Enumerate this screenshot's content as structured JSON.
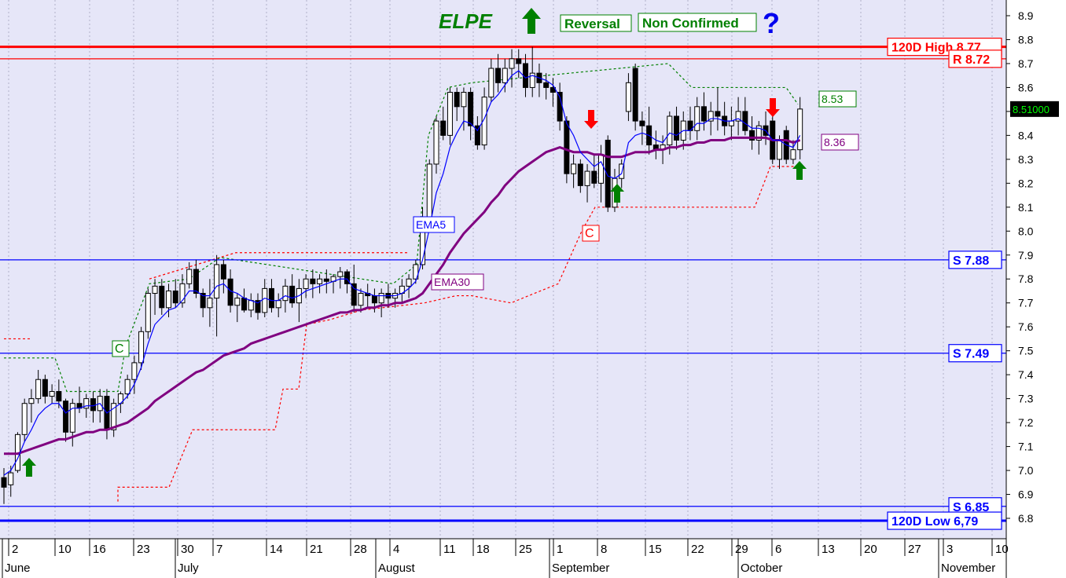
{
  "header": {
    "ticker": "ELPE",
    "tag_reversal": "Reversal",
    "tag_non_confirmed": "Non Confirmed",
    "question_mark": "?",
    "up_arrow_icon": "up-arrow-icon"
  },
  "chart_data": {
    "type": "candlestick",
    "title": "ELPE",
    "y_range": [
      6.76,
      8.96
    ],
    "y_ticks": [
      "6.8",
      "6.9",
      "7.0",
      "7.1",
      "7.2",
      "7.3",
      "7.4",
      "7.5",
      "7.6",
      "7.7",
      "7.8",
      "7.9",
      "8.0",
      "8.1",
      "8.2",
      "8.3",
      "8.4",
      "8.5",
      "8.6",
      "8.7",
      "8.8",
      "8.9"
    ],
    "x_tick_labels": [
      "2",
      "10",
      "16",
      "23",
      "30",
      "7",
      "14",
      "21",
      "28",
      "4",
      "11",
      "18",
      "25",
      "1",
      "8",
      "15",
      "22",
      "29",
      "6",
      "13",
      "20",
      "27",
      "3",
      "10"
    ],
    "month_labels": [
      "June",
      "July",
      "August",
      "September",
      "October",
      "November"
    ],
    "last_price": "8.51000",
    "candles": [
      {
        "o": 6.97,
        "h": 7.01,
        "l": 6.86,
        "c": 6.93
      },
      {
        "o": 6.94,
        "h": 7.02,
        "l": 6.89,
        "c": 6.99
      },
      {
        "o": 7.0,
        "h": 7.16,
        "l": 6.99,
        "c": 7.15
      },
      {
        "o": 7.15,
        "h": 7.3,
        "l": 7.12,
        "c": 7.28
      },
      {
        "o": 7.28,
        "h": 7.34,
        "l": 7.2,
        "c": 7.3
      },
      {
        "o": 7.3,
        "h": 7.42,
        "l": 7.28,
        "c": 7.38
      },
      {
        "o": 7.38,
        "h": 7.4,
        "l": 7.28,
        "c": 7.31
      },
      {
        "o": 7.31,
        "h": 7.36,
        "l": 7.28,
        "c": 7.33
      },
      {
        "o": 7.33,
        "h": 7.38,
        "l": 7.26,
        "c": 7.29
      },
      {
        "o": 7.29,
        "h": 7.3,
        "l": 7.12,
        "c": 7.16
      },
      {
        "o": 7.16,
        "h": 7.3,
        "l": 7.1,
        "c": 7.28
      },
      {
        "o": 7.28,
        "h": 7.35,
        "l": 7.24,
        "c": 7.26
      },
      {
        "o": 7.26,
        "h": 7.32,
        "l": 7.22,
        "c": 7.3
      },
      {
        "o": 7.3,
        "h": 7.33,
        "l": 7.2,
        "c": 7.25
      },
      {
        "o": 7.25,
        "h": 7.34,
        "l": 7.2,
        "c": 7.31
      },
      {
        "o": 7.31,
        "h": 7.34,
        "l": 7.13,
        "c": 7.17
      },
      {
        "o": 7.17,
        "h": 7.3,
        "l": 7.14,
        "c": 7.28
      },
      {
        "o": 7.28,
        "h": 7.33,
        "l": 7.24,
        "c": 7.32
      },
      {
        "o": 7.32,
        "h": 7.4,
        "l": 7.3,
        "c": 7.38
      },
      {
        "o": 7.38,
        "h": 7.48,
        "l": 7.32,
        "c": 7.45
      },
      {
        "o": 7.45,
        "h": 7.6,
        "l": 7.42,
        "c": 7.58
      },
      {
        "o": 7.58,
        "h": 7.76,
        "l": 7.55,
        "c": 7.74
      },
      {
        "o": 7.74,
        "h": 7.8,
        "l": 7.65,
        "c": 7.77
      },
      {
        "o": 7.77,
        "h": 7.8,
        "l": 7.65,
        "c": 7.68
      },
      {
        "o": 7.68,
        "h": 7.78,
        "l": 7.64,
        "c": 7.75
      },
      {
        "o": 7.75,
        "h": 7.8,
        "l": 7.68,
        "c": 7.7
      },
      {
        "o": 7.7,
        "h": 7.82,
        "l": 7.68,
        "c": 7.78
      },
      {
        "o": 7.78,
        "h": 7.87,
        "l": 7.76,
        "c": 7.84
      },
      {
        "o": 7.84,
        "h": 7.88,
        "l": 7.72,
        "c": 7.74
      },
      {
        "o": 7.74,
        "h": 7.76,
        "l": 7.64,
        "c": 7.68
      },
      {
        "o": 7.68,
        "h": 7.8,
        "l": 7.6,
        "c": 7.72
      },
      {
        "o": 7.72,
        "h": 7.9,
        "l": 7.56,
        "c": 7.86
      },
      {
        "o": 7.86,
        "h": 7.88,
        "l": 7.74,
        "c": 7.8
      },
      {
        "o": 7.8,
        "h": 7.84,
        "l": 7.66,
        "c": 7.69
      },
      {
        "o": 7.69,
        "h": 7.74,
        "l": 7.62,
        "c": 7.72
      },
      {
        "o": 7.72,
        "h": 7.76,
        "l": 7.66,
        "c": 7.67
      },
      {
        "o": 7.67,
        "h": 7.74,
        "l": 7.64,
        "c": 7.71
      },
      {
        "o": 7.71,
        "h": 7.74,
        "l": 7.63,
        "c": 7.66
      },
      {
        "o": 7.66,
        "h": 7.8,
        "l": 7.64,
        "c": 7.76
      },
      {
        "o": 7.76,
        "h": 7.8,
        "l": 7.66,
        "c": 7.68
      },
      {
        "o": 7.68,
        "h": 7.74,
        "l": 7.64,
        "c": 7.71
      },
      {
        "o": 7.71,
        "h": 7.8,
        "l": 7.66,
        "c": 7.77
      },
      {
        "o": 7.77,
        "h": 7.82,
        "l": 7.68,
        "c": 7.7
      },
      {
        "o": 7.7,
        "h": 7.8,
        "l": 7.62,
        "c": 7.76
      },
      {
        "o": 7.76,
        "h": 7.82,
        "l": 7.72,
        "c": 7.8
      },
      {
        "o": 7.8,
        "h": 7.84,
        "l": 7.72,
        "c": 7.78
      },
      {
        "o": 7.78,
        "h": 7.82,
        "l": 7.74,
        "c": 7.8
      },
      {
        "o": 7.8,
        "h": 7.84,
        "l": 7.74,
        "c": 7.79
      },
      {
        "o": 7.79,
        "h": 7.82,
        "l": 7.74,
        "c": 7.81
      },
      {
        "o": 7.81,
        "h": 7.85,
        "l": 7.76,
        "c": 7.83
      },
      {
        "o": 7.83,
        "h": 7.84,
        "l": 7.74,
        "c": 7.78
      },
      {
        "o": 7.78,
        "h": 7.86,
        "l": 7.66,
        "c": 7.69
      },
      {
        "o": 7.69,
        "h": 7.76,
        "l": 7.66,
        "c": 7.74
      },
      {
        "o": 7.74,
        "h": 7.78,
        "l": 7.68,
        "c": 7.73
      },
      {
        "o": 7.73,
        "h": 7.76,
        "l": 7.66,
        "c": 7.7
      },
      {
        "o": 7.7,
        "h": 7.76,
        "l": 7.64,
        "c": 7.74
      },
      {
        "o": 7.74,
        "h": 7.78,
        "l": 7.68,
        "c": 7.72
      },
      {
        "o": 7.72,
        "h": 7.76,
        "l": 7.68,
        "c": 7.74
      },
      {
        "o": 7.74,
        "h": 7.8,
        "l": 7.7,
        "c": 7.77
      },
      {
        "o": 7.77,
        "h": 7.82,
        "l": 7.72,
        "c": 7.8
      },
      {
        "o": 7.8,
        "h": 7.88,
        "l": 7.78,
        "c": 7.86
      },
      {
        "o": 7.86,
        "h": 8.1,
        "l": 7.84,
        "c": 8.06
      },
      {
        "o": 8.06,
        "h": 8.3,
        "l": 8.02,
        "c": 8.28
      },
      {
        "o": 8.28,
        "h": 8.48,
        "l": 8.24,
        "c": 8.46
      },
      {
        "o": 8.46,
        "h": 8.52,
        "l": 8.38,
        "c": 8.4
      },
      {
        "o": 8.4,
        "h": 8.6,
        "l": 8.36,
        "c": 8.58
      },
      {
        "o": 8.58,
        "h": 8.6,
        "l": 8.46,
        "c": 8.52
      },
      {
        "o": 8.52,
        "h": 8.6,
        "l": 8.42,
        "c": 8.58
      },
      {
        "o": 8.58,
        "h": 8.6,
        "l": 8.38,
        "c": 8.44
      },
      {
        "o": 8.44,
        "h": 8.48,
        "l": 8.34,
        "c": 8.36
      },
      {
        "o": 8.36,
        "h": 8.6,
        "l": 8.34,
        "c": 8.56
      },
      {
        "o": 8.56,
        "h": 8.72,
        "l": 8.54,
        "c": 8.68
      },
      {
        "o": 8.68,
        "h": 8.74,
        "l": 8.58,
        "c": 8.62
      },
      {
        "o": 8.62,
        "h": 8.72,
        "l": 8.58,
        "c": 8.68
      },
      {
        "o": 8.68,
        "h": 8.76,
        "l": 8.6,
        "c": 8.72
      },
      {
        "o": 8.72,
        "h": 8.76,
        "l": 8.64,
        "c": 8.7
      },
      {
        "o": 8.7,
        "h": 8.74,
        "l": 8.56,
        "c": 8.6
      },
      {
        "o": 8.6,
        "h": 8.77,
        "l": 8.56,
        "c": 8.66
      },
      {
        "o": 8.66,
        "h": 8.7,
        "l": 8.56,
        "c": 8.62
      },
      {
        "o": 8.62,
        "h": 8.66,
        "l": 8.55,
        "c": 8.6
      },
      {
        "o": 8.6,
        "h": 8.64,
        "l": 8.52,
        "c": 8.58
      },
      {
        "o": 8.58,
        "h": 8.62,
        "l": 8.42,
        "c": 8.46
      },
      {
        "o": 8.46,
        "h": 8.48,
        "l": 8.2,
        "c": 8.24
      },
      {
        "o": 8.24,
        "h": 8.32,
        "l": 8.18,
        "c": 8.28
      },
      {
        "o": 8.28,
        "h": 8.3,
        "l": 8.16,
        "c": 8.19
      },
      {
        "o": 8.19,
        "h": 8.28,
        "l": 8.12,
        "c": 8.25
      },
      {
        "o": 8.25,
        "h": 8.32,
        "l": 8.18,
        "c": 8.2
      },
      {
        "o": 8.2,
        "h": 8.36,
        "l": 8.12,
        "c": 8.32
      },
      {
        "o": 8.38,
        "h": 8.4,
        "l": 8.08,
        "c": 8.1
      },
      {
        "o": 8.1,
        "h": 8.26,
        "l": 8.08,
        "c": 8.22
      },
      {
        "o": 8.22,
        "h": 8.3,
        "l": 8.18,
        "c": 8.28
      },
      {
        "o": 8.5,
        "h": 8.66,
        "l": 8.46,
        "c": 8.62
      },
      {
        "o": 8.68,
        "h": 8.7,
        "l": 8.42,
        "c": 8.46
      },
      {
        "o": 8.46,
        "h": 8.5,
        "l": 8.36,
        "c": 8.44
      },
      {
        "o": 8.44,
        "h": 8.52,
        "l": 8.32,
        "c": 8.36
      },
      {
        "o": 8.36,
        "h": 8.42,
        "l": 8.3,
        "c": 8.34
      },
      {
        "o": 8.34,
        "h": 8.4,
        "l": 8.28,
        "c": 8.36
      },
      {
        "o": 8.36,
        "h": 8.5,
        "l": 8.32,
        "c": 8.48
      },
      {
        "o": 8.48,
        "h": 8.52,
        "l": 8.34,
        "c": 8.38
      },
      {
        "o": 8.38,
        "h": 8.5,
        "l": 8.34,
        "c": 8.46
      },
      {
        "o": 8.46,
        "h": 8.52,
        "l": 8.38,
        "c": 8.42
      },
      {
        "o": 8.42,
        "h": 8.56,
        "l": 8.38,
        "c": 8.52
      },
      {
        "o": 8.52,
        "h": 8.58,
        "l": 8.42,
        "c": 8.46
      },
      {
        "o": 8.46,
        "h": 8.54,
        "l": 8.4,
        "c": 8.5
      },
      {
        "o": 8.5,
        "h": 8.6,
        "l": 8.42,
        "c": 8.48
      },
      {
        "o": 8.48,
        "h": 8.54,
        "l": 8.4,
        "c": 8.44
      },
      {
        "o": 8.44,
        "h": 8.52,
        "l": 8.38,
        "c": 8.46
      },
      {
        "o": 8.46,
        "h": 8.56,
        "l": 8.4,
        "c": 8.5
      },
      {
        "o": 8.5,
        "h": 8.56,
        "l": 8.4,
        "c": 8.42
      },
      {
        "o": 8.42,
        "h": 8.48,
        "l": 8.34,
        "c": 8.38
      },
      {
        "o": 8.38,
        "h": 8.46,
        "l": 8.32,
        "c": 8.44
      },
      {
        "o": 8.44,
        "h": 8.5,
        "l": 8.36,
        "c": 8.4
      },
      {
        "o": 8.46,
        "h": 8.48,
        "l": 8.28,
        "c": 8.3
      },
      {
        "o": 8.3,
        "h": 8.4,
        "l": 8.26,
        "c": 8.38
      },
      {
        "o": 8.42,
        "h": 8.44,
        "l": 8.28,
        "c": 8.3
      },
      {
        "o": 8.3,
        "h": 8.38,
        "l": 8.28,
        "c": 8.34
      },
      {
        "o": 8.34,
        "h": 8.56,
        "l": 8.3,
        "c": 8.51
      }
    ],
    "ema5": [
      6.98,
      7.0,
      7.05,
      7.12,
      7.17,
      7.23,
      7.26,
      7.28,
      7.28,
      7.24,
      7.26,
      7.26,
      7.27,
      7.27,
      7.28,
      7.24,
      7.26,
      7.28,
      7.31,
      7.36,
      7.43,
      7.53,
      7.61,
      7.64,
      7.67,
      7.68,
      7.71,
      7.75,
      7.75,
      7.73,
      7.73,
      7.77,
      7.78,
      7.75,
      7.74,
      7.72,
      7.71,
      7.7,
      7.72,
      7.71,
      7.71,
      7.73,
      7.72,
      7.73,
      7.75,
      7.76,
      7.77,
      7.78,
      7.79,
      7.8,
      7.8,
      7.76,
      7.75,
      7.74,
      7.73,
      7.73,
      7.73,
      7.73,
      7.74,
      7.76,
      7.79,
      7.88,
      8.01,
      8.16,
      8.24,
      8.35,
      8.41,
      8.46,
      8.45,
      8.42,
      8.47,
      8.54,
      8.57,
      8.61,
      8.65,
      8.67,
      8.64,
      8.65,
      8.64,
      8.63,
      8.61,
      8.56,
      8.45,
      8.4,
      8.33,
      8.3,
      8.27,
      8.29,
      8.23,
      8.22,
      8.24,
      8.37,
      8.4,
      8.41,
      8.4,
      8.38,
      8.37,
      8.41,
      8.4,
      8.42,
      8.42,
      8.45,
      8.45,
      8.47,
      8.47,
      8.46,
      8.46,
      8.47,
      8.45,
      8.43,
      8.43,
      8.42,
      8.38,
      8.38,
      8.36,
      8.35,
      8.4
    ],
    "ema30": [
      7.07,
      7.07,
      7.07,
      7.08,
      7.09,
      7.1,
      7.11,
      7.12,
      7.13,
      7.13,
      7.14,
      7.15,
      7.16,
      7.16,
      7.17,
      7.17,
      7.18,
      7.19,
      7.2,
      7.22,
      7.24,
      7.26,
      7.29,
      7.31,
      7.33,
      7.35,
      7.37,
      7.39,
      7.41,
      7.42,
      7.44,
      7.46,
      7.48,
      7.49,
      7.5,
      7.51,
      7.53,
      7.54,
      7.55,
      7.56,
      7.57,
      7.58,
      7.59,
      7.6,
      7.61,
      7.62,
      7.63,
      7.64,
      7.65,
      7.66,
      7.66,
      7.67,
      7.67,
      7.68,
      7.68,
      7.69,
      7.69,
      7.7,
      7.7,
      7.71,
      7.72,
      7.74,
      7.78,
      7.82,
      7.86,
      7.91,
      7.95,
      7.99,
      8.02,
      8.05,
      8.08,
      8.12,
      8.15,
      8.19,
      8.22,
      8.25,
      8.27,
      8.29,
      8.31,
      8.33,
      8.34,
      8.35,
      8.34,
      8.33,
      8.33,
      8.33,
      8.32,
      8.32,
      8.31,
      8.31,
      8.31,
      8.32,
      8.33,
      8.33,
      8.33,
      8.34,
      8.34,
      8.35,
      8.35,
      8.36,
      8.36,
      8.37,
      8.37,
      8.38,
      8.38,
      8.38,
      8.39,
      8.39,
      8.39,
      8.39,
      8.39,
      8.39,
      8.38,
      8.38,
      8.38,
      8.37,
      8.38
    ],
    "horizontal_lines": [
      {
        "label": "120D High 8.77",
        "value": 8.77,
        "color": "#ff0000"
      },
      {
        "label": "R 8.72",
        "value": 8.72,
        "color": "#ff0000"
      },
      {
        "label": "S 7.88",
        "value": 7.88,
        "color": "#0000ff"
      },
      {
        "label": "S 7.49",
        "value": 7.49,
        "color": "#0000ff"
      },
      {
        "label": "S 6.85",
        "value": 6.85,
        "color": "#0000ff"
      },
      {
        "label": "120D Low 6,79",
        "value": 6.79,
        "color": "#0000ff"
      }
    ],
    "annotations": {
      "ema5_label": "EMA5",
      "ema30_label": "EMA30",
      "value_green": "8.53",
      "value_purple": "8.36",
      "c_label": "C"
    },
    "colors": {
      "background": "#e6e6f8",
      "ema5": "#0000ff",
      "ema30": "#800080",
      "up_arrow": "#008000",
      "down_arrow": "#ff0000",
      "resistance": "#ff0000",
      "support": "#0000ff"
    }
  }
}
